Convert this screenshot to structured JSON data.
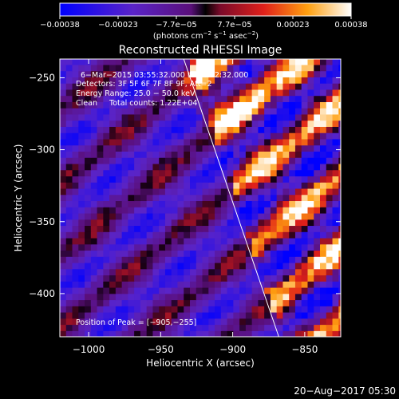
{
  "chart_data": {
    "type": "heatmap",
    "title": "Reconstructed RHESSI Image",
    "xlabel": "Heliocentric X (arcsec)",
    "ylabel": "Heliocentric Y (arcsec)",
    "xlim": [
      -1020,
      -825
    ],
    "ylim": [
      -430,
      -237
    ],
    "x_ticks": [
      -1000,
      -950,
      -900,
      -850
    ],
    "x_tick_labels": [
      "−1000",
      "−950",
      "−900",
      "−850"
    ],
    "y_ticks": [
      -250,
      -300,
      -350,
      -400
    ],
    "y_tick_labels": [
      "−250",
      "−300",
      "−350",
      "−400"
    ],
    "colorbar": {
      "range": [
        -0.00038,
        0.00038
      ],
      "tick_labels": [
        "−0.00038",
        "−0.00023",
        "−7.7e−05",
        "7.7e−05",
        "0.00023",
        "0.00038"
      ],
      "unit_main": "(photons cm",
      "unit_exp1": "−2",
      "unit_mid": " s",
      "unit_exp2": "−1",
      "unit_asec": " asec",
      "unit_exp3": "−2",
      "unit_end": ")"
    },
    "annotations": [
      "6−Mar−2015 03:55:32.000 to 04:02:32.000",
      "Detectors: 3F 5F 6F 7F 8F 9F, Att=2",
      "Energy Range: 25.0 − 50.0 keV",
      "Clean     Total counts: 1.22E+04"
    ],
    "peak_label": "Position of Peak = [−905,−255]",
    "limb_line": {
      "x": [
        -934,
        -868
      ],
      "y": [
        -237,
        -430
      ]
    },
    "map": {
      "cell_arcsec": 4.3,
      "x0": -1020,
      "y0": -430,
      "nx": 46,
      "ny": 45,
      "pattern": "diagonal fringe; bright lower-left to upper-right stripes, dimmer beyond limb",
      "peak": [
        -905,
        -255
      ]
    }
  },
  "footer": {
    "timestamp": "20−Aug−2017 05:30"
  }
}
